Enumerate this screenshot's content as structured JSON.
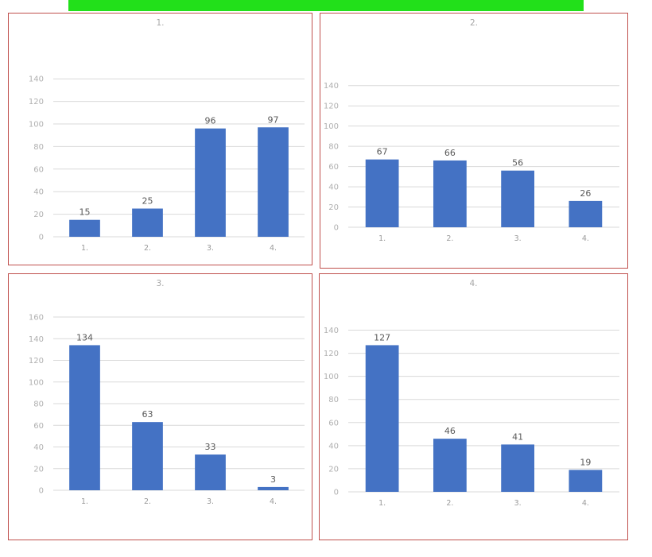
{
  "banner": {
    "text": ""
  },
  "colors": {
    "bar": "#4472c4",
    "border": "#c0504d",
    "banner": "#22e01a"
  },
  "chart_data": [
    {
      "type": "bar",
      "title": "1.",
      "subtitle": "",
      "top_label": "",
      "categories": [
        "1.",
        "2.",
        "3.",
        "4."
      ],
      "category_sublabels": [
        "",
        "",
        "",
        ""
      ],
      "values": [
        15,
        25,
        96,
        97
      ],
      "ylim": [
        0,
        150
      ],
      "yticks": [
        0,
        20,
        40,
        60,
        80,
        100,
        120,
        140
      ],
      "grid": true
    },
    {
      "type": "bar",
      "title": "2.",
      "subtitle": "",
      "top_label": "",
      "categories": [
        "1.",
        "2.",
        "3.",
        "4."
      ],
      "category_sublabels": [
        "",
        "",
        "",
        ""
      ],
      "values": [
        67,
        66,
        56,
        26
      ],
      "ylim": [
        0,
        150
      ],
      "yticks": [
        0,
        20,
        40,
        60,
        80,
        100,
        120,
        140
      ],
      "grid": true
    },
    {
      "type": "bar",
      "title": "3.",
      "subtitle": "",
      "top_label": "",
      "categories": [
        "1.",
        "2.",
        "3.",
        "4."
      ],
      "category_sublabels": [
        "",
        "",
        "",
        ""
      ],
      "values": [
        134,
        63,
        33,
        3
      ],
      "ylim": [
        0,
        160
      ],
      "yticks": [
        0,
        20,
        40,
        60,
        80,
        100,
        120,
        140,
        160
      ],
      "grid": true
    },
    {
      "type": "bar",
      "title": "4.",
      "subtitle": "",
      "top_label": "",
      "categories": [
        "1.",
        "2.",
        "3.",
        "4."
      ],
      "category_sublabels": [
        "",
        "",
        "",
        ""
      ],
      "values": [
        127,
        46,
        41,
        19
      ],
      "ylim": [
        0,
        150
      ],
      "yticks": [
        0,
        20,
        40,
        60,
        80,
        100,
        120,
        140
      ],
      "grid": true
    }
  ]
}
